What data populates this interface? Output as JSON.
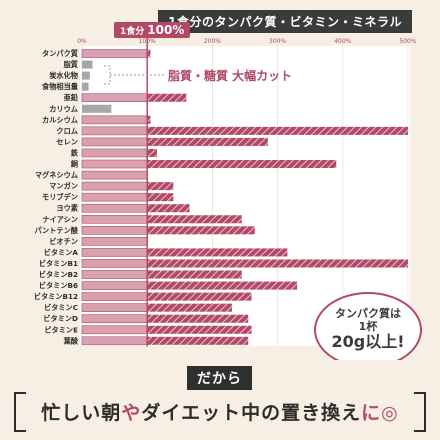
{
  "header": {
    "title": "1食分のタンパク質・ビタミン・ミネラル",
    "badge_small": "1食分",
    "badge_big": "100%"
  },
  "annotation": "脂質・糖質 大幅カット",
  "bubble": {
    "line1": "タンパク質は",
    "line2": "1杯",
    "line3": "20g以上!"
  },
  "cta": {
    "lead": "だから",
    "part1": "忙しい朝",
    "part2": "や",
    "part3": "ダイエット中の置き換え",
    "part4": "に◎"
  },
  "colors": {
    "bar": "#b24a67",
    "bar_pale": "#d9a1b0",
    "gray": "#a7a7a7",
    "accent": "#b24a67",
    "text": "#2c2c2c"
  },
  "chart_data": {
    "type": "bar",
    "orientation": "horizontal",
    "xlim": [
      0,
      500
    ],
    "x_ticks": [
      "0%",
      "100%",
      "200%",
      "300%",
      "400%",
      "500%"
    ],
    "reference_line": 100,
    "categories": [
      "タンパク質",
      "脂質",
      "炭水化物",
      "食物相当量",
      "亜鉛",
      "カリウム",
      "カルシウム",
      "クロム",
      "セレン",
      "鉄",
      "銅",
      "マグネシウム",
      "マンガン",
      "モリブデン",
      "ヨウ素",
      "ナイアシン",
      "パントテン酸",
      "ビオチン",
      "ビタミンA",
      "ビタミンB1",
      "ビタミンB2",
      "ビタミンB6",
      "ビタミンB12",
      "ビタミンC",
      "ビタミンD",
      "ビタミンE",
      "葉酸"
    ],
    "values": [
      105,
      16,
      12,
      10,
      160,
      45,
      105,
      500,
      285,
      115,
      390,
      100,
      140,
      140,
      165,
      245,
      265,
      100,
      315,
      500,
      245,
      330,
      260,
      230,
      255,
      260,
      255
    ],
    "styles": [
      "pink",
      "gray",
      "gray",
      "gray",
      "pink",
      "gray",
      "pink",
      "pink",
      "pink",
      "pink",
      "pink",
      "pink",
      "pink",
      "pink",
      "pink",
      "pink",
      "pink",
      "pink",
      "pink",
      "pink",
      "pink",
      "pink",
      "pink",
      "pink",
      "pink",
      "pink",
      "pink"
    ]
  }
}
